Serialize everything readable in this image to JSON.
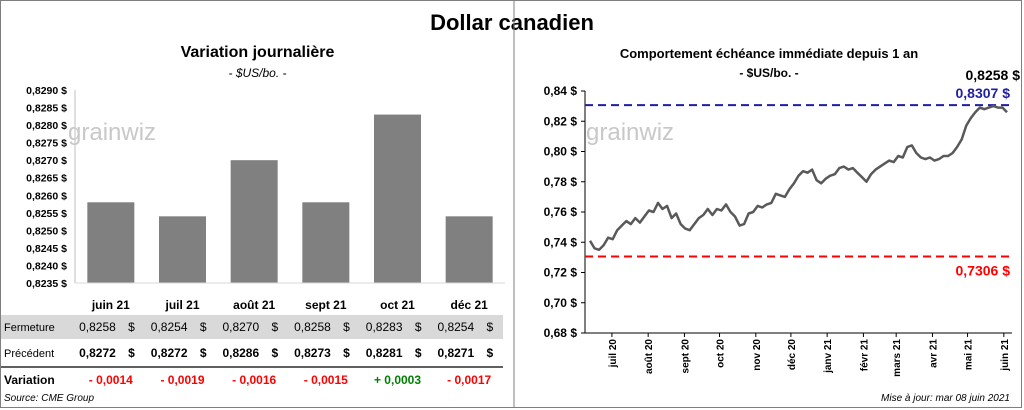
{
  "title": "Dollar canadien",
  "colors": {
    "bar": "#808080",
    "line": "#595959",
    "upper": "#1f1fa3",
    "lower": "#ff0000",
    "negative": "#ff0000",
    "positive": "#008000",
    "row_band": "#d9d9d9"
  },
  "watermark": "grainwiz",
  "chart_data": [
    {
      "type": "bar",
      "title": "Variation  journalière",
      "subtitle": "- $US/bo. -",
      "categories": [
        "juin 21",
        "juil 21",
        "août 21",
        "sept 21",
        "oct 21",
        "déc 21"
      ],
      "values": [
        0.8258,
        0.8254,
        0.827,
        0.8258,
        0.8283,
        0.8254
      ],
      "ylim": [
        0.8235,
        0.829
      ],
      "yticks": [
        "0,8235 $",
        "0,8240 $",
        "0,8245 $",
        "0,8250 $",
        "0,8255 $",
        "0,8260 $",
        "0,8265 $",
        "0,8270 $",
        "0,8275 $",
        "0,8280 $",
        "0,8285 $",
        "0,8290 $"
      ],
      "table": {
        "rows": [
          {
            "label": "Fermeture",
            "values": [
              "0,8258",
              "0,8254",
              "0,8270",
              "0,8258",
              "0,8283",
              "0,8254"
            ],
            "unit": "$"
          },
          {
            "label": "Précédent",
            "values": [
              "0,8272",
              "0,8272",
              "0,8286",
              "0,8273",
              "0,8281",
              "0,8271"
            ],
            "unit": "$"
          },
          {
            "label": "Variation",
            "values": [
              "- 0,0014",
              "- 0,0019",
              "- 0,0016",
              "- 0,0015",
              "+ 0,0003",
              "- 0,0017"
            ]
          }
        ]
      }
    },
    {
      "type": "line",
      "title": "Comportement échéance immédiate depuis 1 an",
      "subtitle": "- $US/bo. -",
      "x_start": "2020-06-08",
      "x_end": "2021-06-08",
      "ylim": [
        0.68,
        0.84
      ],
      "yticks": [
        "0,68 $",
        "0,70 $",
        "0,72 $",
        "0,74 $",
        "0,76 $",
        "0,78 $",
        "0,80 $",
        "0,82 $",
        "0,84 $"
      ],
      "xticks": [
        "juil 20",
        "août 20",
        "sept 20",
        "oct 20",
        "nov 20",
        "déc 20",
        "janv 21",
        "févr 21",
        "mars 21",
        "avr 21",
        "mai 21",
        "juin 21"
      ],
      "series": [
        {
          "values": [
            0.741,
            0.736,
            0.735,
            0.738,
            0.743,
            0.742,
            0.748,
            0.751,
            0.754,
            0.752,
            0.756,
            0.753,
            0.757,
            0.761,
            0.76,
            0.766,
            0.762,
            0.764,
            0.756,
            0.759,
            0.752,
            0.749,
            0.748,
            0.752,
            0.756,
            0.758,
            0.762,
            0.758,
            0.762,
            0.761,
            0.765,
            0.76,
            0.757,
            0.751,
            0.752,
            0.759,
            0.76,
            0.764,
            0.763,
            0.765,
            0.766,
            0.772,
            0.771,
            0.77,
            0.775,
            0.779,
            0.784,
            0.787,
            0.786,
            0.788,
            0.781,
            0.779,
            0.782,
            0.784,
            0.785,
            0.789,
            0.79,
            0.788,
            0.789,
            0.786,
            0.783,
            0.78,
            0.785,
            0.788,
            0.79,
            0.792,
            0.794,
            0.793,
            0.797,
            0.796,
            0.803,
            0.804,
            0.799,
            0.796,
            0.795,
            0.796,
            0.794,
            0.795,
            0.797,
            0.797,
            0.799,
            0.803,
            0.808,
            0.817,
            0.822,
            0.826,
            0.829,
            0.828,
            0.829,
            0.83,
            0.829,
            0.829,
            0.826
          ]
        }
      ],
      "reference_lines": [
        {
          "label": "0,8307 $",
          "value": 0.8307,
          "color": "#1f1fa3"
        },
        {
          "label": "0,7306 $",
          "value": 0.7306,
          "color": "#ff0000"
        }
      ],
      "last_value_label": "0,8258 $"
    }
  ],
  "footer": {
    "source": "Source: CME Group",
    "updated": "Mise à jour: mar 08 juin 2021"
  }
}
